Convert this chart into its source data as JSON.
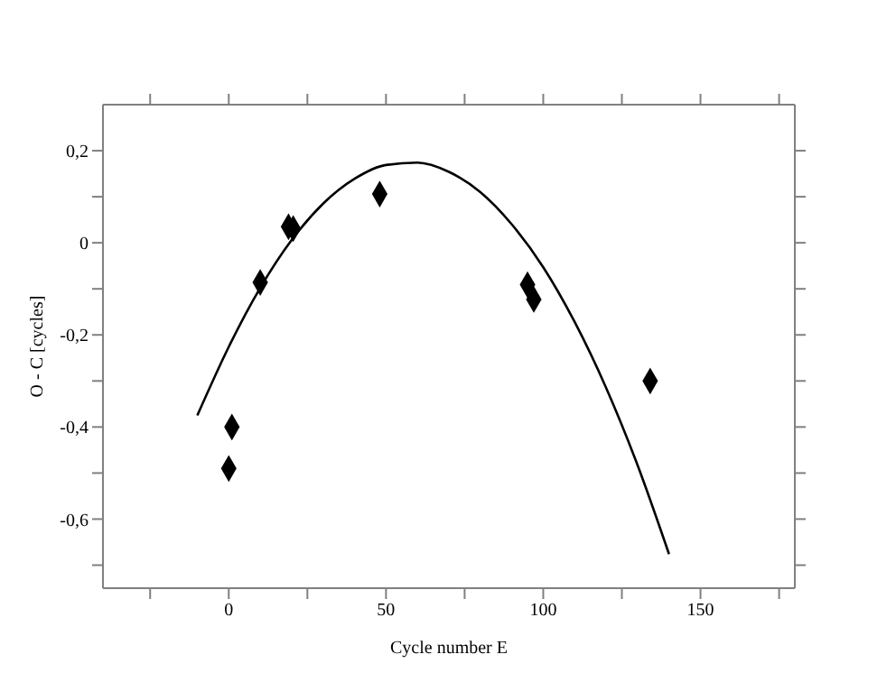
{
  "chart_data": {
    "type": "scatter",
    "xlabel": "Cycle number E",
    "ylabel": "O - C [cycles]",
    "xlim": [
      -40,
      180
    ],
    "ylim": [
      -0.75,
      0.3
    ],
    "xticks": [
      {
        "value": -25,
        "label": null
      },
      0,
      {
        "value": 25,
        "label": null
      },
      50,
      {
        "value": 75,
        "label": null
      },
      100,
      {
        "value": 125,
        "label": null
      },
      150,
      {
        "value": 175,
        "label": null
      }
    ],
    "yticks": [
      {
        "value": -0.7,
        "label": null
      },
      {
        "value": -0.6,
        "label": "-0,6"
      },
      {
        "value": -0.5,
        "label": null
      },
      {
        "value": -0.4,
        "label": "-0,4"
      },
      {
        "value": -0.3,
        "label": null
      },
      {
        "value": -0.2,
        "label": "-0,2"
      },
      {
        "value": -0.1,
        "label": null
      },
      {
        "value": 0,
        "label": "0"
      },
      {
        "value": 0.1,
        "label": null
      },
      {
        "value": 0.2,
        "label": "0,2"
      }
    ],
    "series": [
      {
        "color": "#000000",
        "marker": "diamond",
        "x": [
          0,
          1,
          10,
          19,
          20.5,
          48,
          95,
          97,
          134
        ],
        "values": [
          -0.49,
          -0.4,
          -0.086,
          0.035,
          0.031,
          0.106,
          -0.091,
          -0.123,
          -0.3
        ]
      },
      {
        "type": "line",
        "color": "#000000",
        "marker": "none",
        "line_style": "solid",
        "x": [
          -10,
          0,
          10,
          20,
          30,
          40,
          50,
          60,
          70,
          80,
          90,
          100,
          110,
          120,
          130,
          140
        ],
        "values": [
          -0.375,
          -0.226,
          -0.098,
          0.006,
          0.085,
          0.139,
          0.169,
          0.174,
          0.154,
          0.11,
          0.04,
          -0.053,
          -0.172,
          -0.315,
          -0.483,
          -0.676
        ]
      }
    ]
  }
}
